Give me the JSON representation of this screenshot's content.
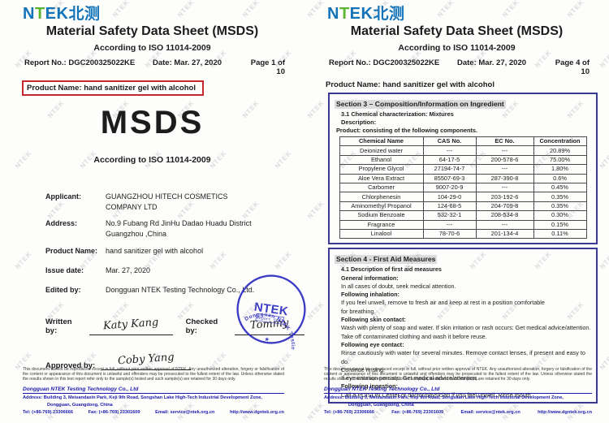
{
  "colors": {
    "logoblue": "#1273b8",
    "logogreen": "#5cb531",
    "navy": "#3a3a94",
    "red": "#c4292b",
    "footblue": "#1a1aae",
    "sealblue": "#2b2bc0"
  },
  "watermark": {
    "text": "NTEK"
  },
  "logo": {
    "n": "N",
    "t": "T",
    "ek": "EK",
    "cn": "北测"
  },
  "doc": {
    "title": "Material Safety Data Sheet (MSDS)",
    "subtitle": "According to ISO 11014-2009",
    "report_no": "Report No.: DGC200325022KE",
    "date": "Date: Mar. 27, 2020",
    "product_line": "Product Name: hand sanitizer gel with alcohol"
  },
  "page1": {
    "page_label": "Page 1 of 10",
    "big_title": "MSDS",
    "iso_line": "According to ISO 11014-2009",
    "fields": {
      "applicant_label": "Applicant:",
      "applicant_line1": "GUANGZHOU HITECH COSMETICS",
      "applicant_line2": "COMPANY LTD",
      "address_label": "Address:",
      "address_line1": "No.9 Fubang Rd JinHu Dadao Huadu District",
      "address_line2": "Guangzhou ,China",
      "product_label": "Product Name:",
      "product_value": "hand sanitizer gel with alcohol",
      "issue_label": "Issue date:",
      "issue_value": "Mar. 27, 2020",
      "edited_label": "Edited by:",
      "edited_value": "Dongguan NTEK Testing Technology Co., Ltd."
    },
    "signatures": {
      "written_label": "Written by:",
      "written_sign": "Katy Kang",
      "checked_label": "Checked by:",
      "checked_sign": "Tommy",
      "approved_label": "Approved by:",
      "approved_sign": "Coby Yang"
    },
    "seal": {
      "center": "NTEK",
      "sub": "Report Seal",
      "ring": "Dongguan NTEK Testing Technology Co., Ltd.",
      "star": "★"
    }
  },
  "page4": {
    "page_label": "Page 4 of 10",
    "section3": {
      "title": "Section 3 – Composition/Information on Ingredient",
      "line1": "3.1 Chemical characterization: Mixtures",
      "line2": "Description:",
      "line3": "Product: consisting of the following components.",
      "table": {
        "headers": {
          "name": "Chemical Name",
          "cas": "CAS No.",
          "ec": "EC No.",
          "conc": "Concentration"
        },
        "rows": [
          {
            "name": "Deionized water",
            "cas": "---",
            "ec": "---",
            "conc": "20.89%"
          },
          {
            "name": "Ethanol",
            "cas": "64-17-5",
            "ec": "200-578-6",
            "conc": "75.00%"
          },
          {
            "name": "Propylene Glycol",
            "cas": "27194-74-7",
            "ec": "---",
            "conc": "1.80%"
          },
          {
            "name": "Aloe Vera Extract",
            "cas": "85507-69-3",
            "ec": "287-390-8",
            "conc": "0.6%"
          },
          {
            "name": "Carbomer",
            "cas": "9007-20-9",
            "ec": "---",
            "conc": "0.45%"
          },
          {
            "name": "Chlorphenesin",
            "cas": "104-29-0",
            "ec": "203-192-6",
            "conc": "0.35%"
          },
          {
            "name": "Aminomethyl Propanol",
            "cas": "124-68-5",
            "ec": "204-709-8",
            "conc": "0.35%"
          },
          {
            "name": "Sodium Benzoate",
            "cas": "532-32-1",
            "ec": "208-534-8",
            "conc": "0.30%"
          },
          {
            "name": "Fragrance",
            "cas": "---",
            "ec": "---",
            "conc": "0.15%"
          },
          {
            "name": "Linalool",
            "cas": "78-70-6",
            "ec": "201-134-4",
            "conc": "0.11%"
          }
        ]
      }
    },
    "section4": {
      "title": "Section 4 - First Aid Measures",
      "lines": [
        {
          "text": "4.1 Description of first aid measures",
          "bold": true
        },
        {
          "text": "General information:",
          "bold": true
        },
        {
          "text": "In all cases of doubt, seek medical attention.",
          "bold": false
        },
        {
          "text": "Following inhalation:",
          "bold": true
        },
        {
          "text": "If you feel unwell, remove to fresh air and keep at rest in a position comfortable",
          "bold": false
        },
        {
          "text": "for breathing.",
          "bold": false
        },
        {
          "text": "Following skin contact:",
          "bold": true
        },
        {
          "text": "Wash with plenty of soap and water. If skin irritation or rash occurs: Get medical advice/attention.",
          "bold": false
        },
        {
          "text": "Take off contaminated clothing and wash it before reuse.",
          "bold": false
        },
        {
          "text": "Following eye contact:",
          "bold": true
        },
        {
          "text": "Rinse cautiously with water for several minutes. Remove contact lenses, if present and easy to do.",
          "bold": false
        },
        {
          "text": "Continue rinsing.",
          "bold": false
        },
        {
          "text": "If eye irritation persists: Get medical advice/attention.",
          "bold": false
        },
        {
          "text": "Following ingestion:",
          "bold": true
        },
        {
          "text": "Call a POISON Center or doctor/physician if you feel unwell. Rinse mouth.",
          "bold": false
        }
      ]
    }
  },
  "footer": {
    "disclaimer": "This document cannot be reproduced except in full, without prior written approval of NTEK. Any unauthorized alteration, forgery or falsification of the content or appearance of this document is unlawful and offenders may be prosecuted to the fullest extent of the law. Unless otherwise stated the results shown in this test report refer only to the sample(s) tested and such sample(s) are retained for 30 days only.",
    "company": "Dongguan NTEK Testing Technology Co., Ltd",
    "address1": "Address: Building 3, Meisandaxin Park, Keji 9th Road, Songshan Lake High-Tech Industrial Development Zone,",
    "address2": "Dongguan, Guangdong, China",
    "tel": "Tel: (+86-769) 23306666",
    "fax": "Fax: (+86-769) 23301609",
    "email": "Email: service@ntek.org.cn",
    "web": "http://www.dgntek.org.cn"
  }
}
